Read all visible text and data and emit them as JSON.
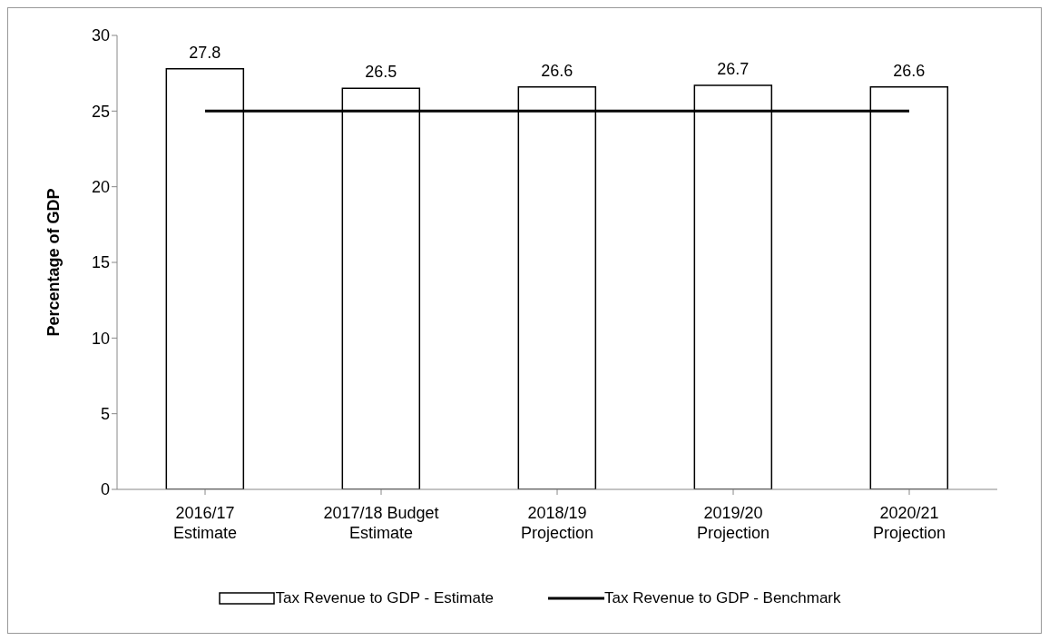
{
  "chart_data": {
    "type": "bar",
    "ylabel": "Percentage of GDP",
    "categories": [
      "2016/17 Estimate",
      "2017/18 Budget Estimate",
      "2018/19 Projection",
      "2019/20 Projection",
      "2020/21 Projection"
    ],
    "series": [
      {
        "name": "Tax Revenue to GDP - Estimate",
        "color": "#ffffff",
        "values": [
          27.8,
          26.5,
          26.6,
          26.7,
          26.6
        ],
        "value_labels": [
          "27.8",
          "26.5",
          "26.6",
          "26.7",
          "26.6"
        ]
      },
      {
        "name": "Tax Revenue to GDP - Benchmark",
        "type": "line",
        "color": "#000000",
        "values": [
          25,
          25,
          25,
          25,
          25
        ]
      }
    ],
    "ylim": [
      0,
      30
    ],
    "yticks": [
      0,
      5,
      10,
      15,
      20,
      25,
      30
    ],
    "grid": false,
    "legend": "bottom",
    "marker": "none",
    "line_style": "solid"
  }
}
